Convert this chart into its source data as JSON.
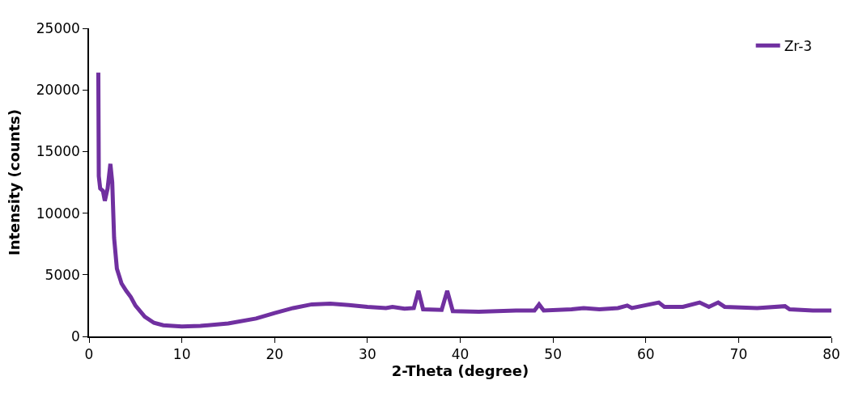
{
  "chart_data": {
    "type": "line",
    "xlabel": "2-Theta (degree)",
    "ylabel": "Intensity (counts)",
    "xlim": [
      0,
      80
    ],
    "xticks": [
      0,
      10,
      20,
      30,
      40,
      50,
      60,
      70,
      80
    ],
    "ylim": [
      0,
      25000
    ],
    "yticks": [
      0,
      5000,
      10000,
      15000,
      20000,
      25000
    ],
    "legend": "top right",
    "marker": "none",
    "line_style": "solid",
    "series": [
      {
        "name": "Zr-3",
        "color": "#7030a0",
        "x": [
          1.0,
          1.05,
          1.2,
          1.5,
          1.7,
          2.0,
          2.3,
          2.5,
          2.7,
          3.0,
          3.5,
          4.0,
          4.5,
          5.0,
          6,
          7,
          8,
          10,
          12,
          15,
          18,
          20,
          22,
          24,
          26,
          28,
          30,
          32,
          32.7,
          34,
          35,
          35.5,
          36,
          38,
          38.6,
          39.2,
          42,
          46,
          48,
          48.5,
          49,
          52,
          53.3,
          55,
          57,
          58,
          58.5,
          61.4,
          62,
          64,
          65.8,
          66.8,
          67.8,
          68.5,
          72,
          75,
          75.5,
          78,
          80
        ],
        "values": [
          21400,
          13000,
          12000,
          11800,
          11000,
          12000,
          14000,
          12500,
          8000,
          5500,
          4300,
          3700,
          3200,
          2500,
          1600,
          1100,
          900,
          800,
          850,
          1050,
          1450,
          1900,
          2300,
          2600,
          2650,
          2550,
          2400,
          2300,
          2400,
          2250,
          2300,
          3700,
          2200,
          2150,
          3700,
          2050,
          2000,
          2100,
          2100,
          2600,
          2100,
          2200,
          2300,
          2200,
          2300,
          2500,
          2300,
          2750,
          2400,
          2400,
          2750,
          2400,
          2750,
          2400,
          2300,
          2450,
          2200,
          2100,
          2100
        ]
      }
    ]
  }
}
